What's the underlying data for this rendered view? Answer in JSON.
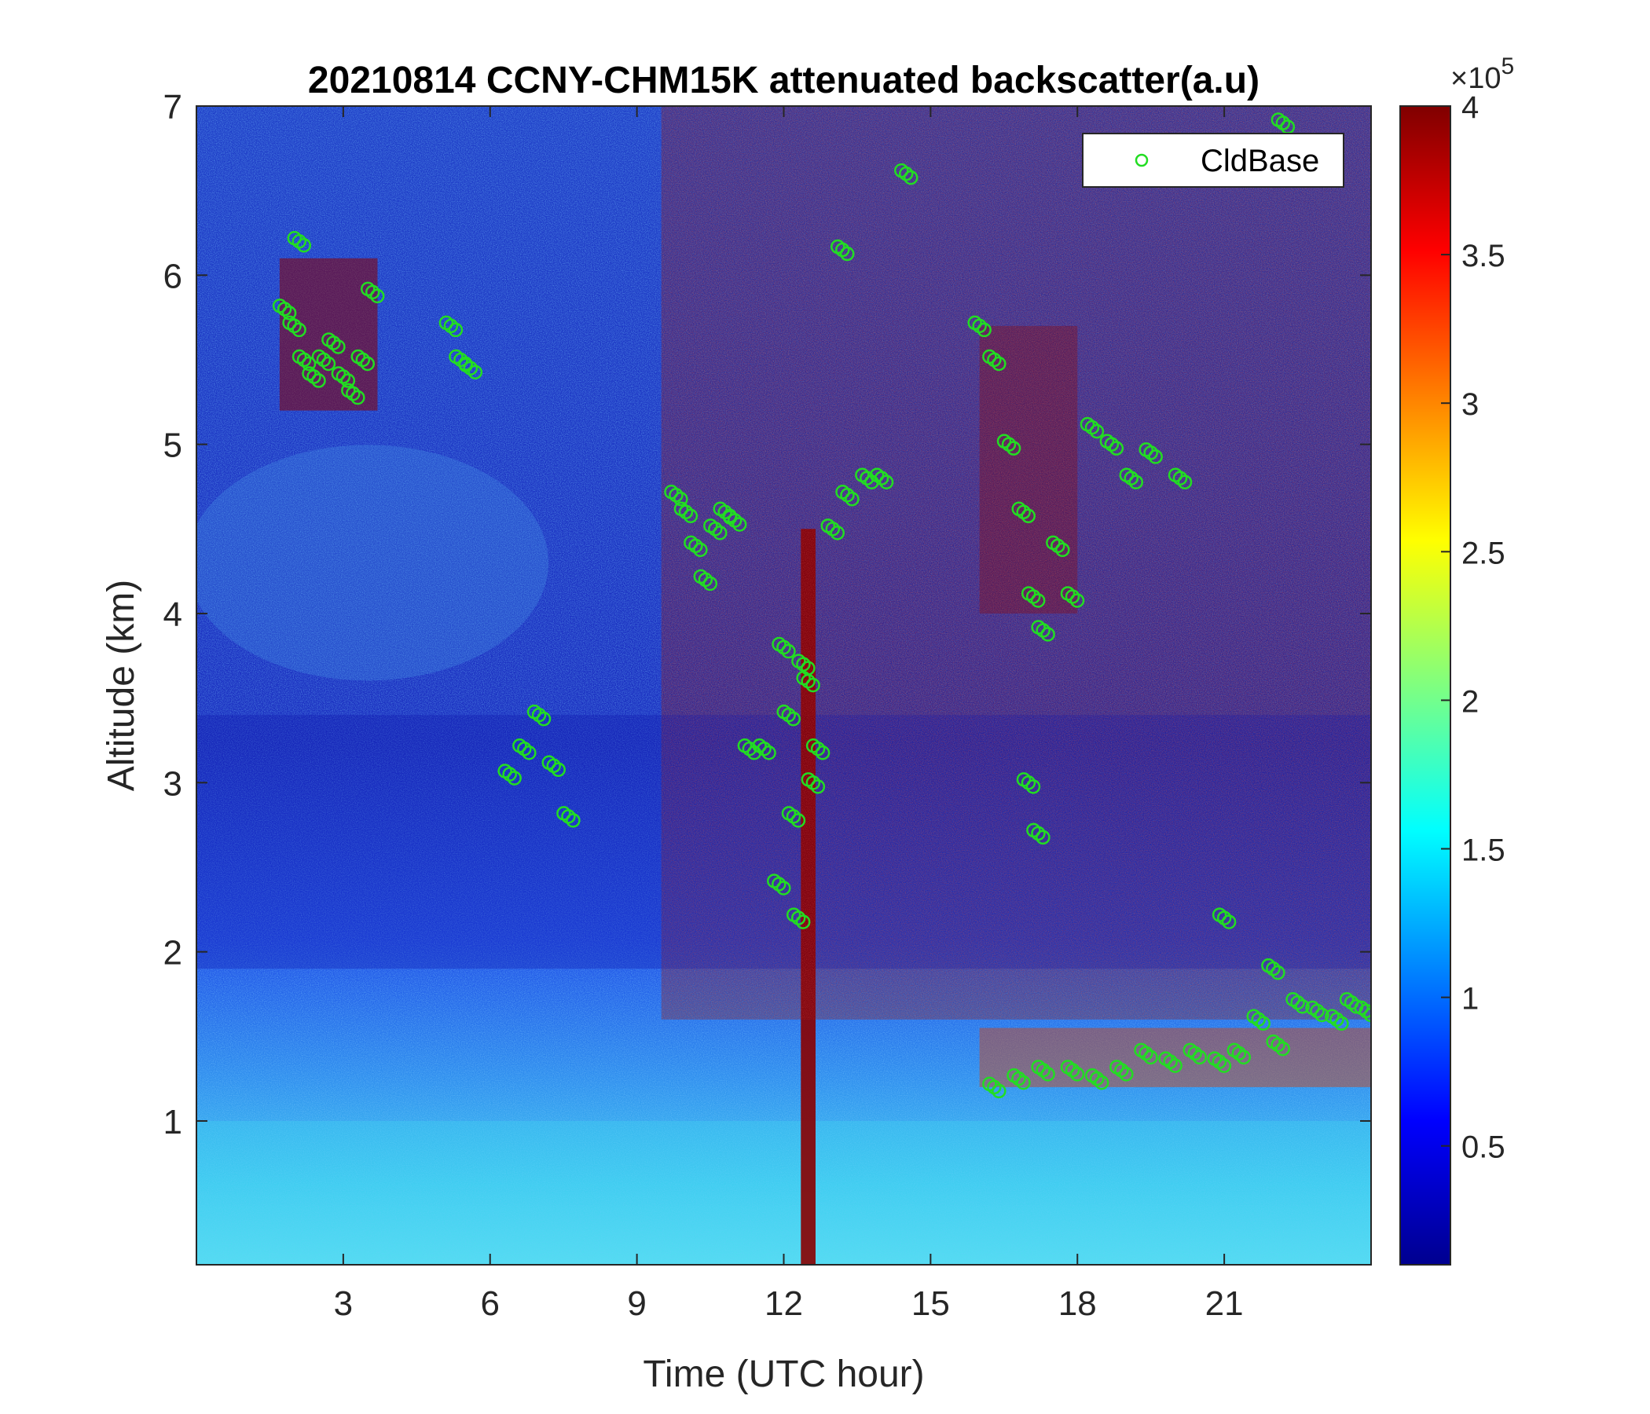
{
  "chart_data": {
    "type": "heatmap",
    "title": "20210814 CCNY-CHM15K attenuated backscatter(a.u)",
    "xlabel": "Time (UTC hour)",
    "ylabel": "Altitude (km)",
    "xlim": [
      0,
      24
    ],
    "ylim": [
      0.15,
      7
    ],
    "xticks": [
      3,
      6,
      9,
      12,
      15,
      18,
      21
    ],
    "yticks": [
      1,
      2,
      3,
      4,
      5,
      6,
      7
    ],
    "xtick_labels": [
      "3",
      "6",
      "9",
      "12",
      "15",
      "18",
      "21"
    ],
    "ytick_labels": [
      "1",
      "2",
      "3",
      "4",
      "5",
      "6",
      "7"
    ],
    "colorbar": {
      "colormap": "jet",
      "range": [
        0.1,
        4
      ],
      "ticks": [
        0.5,
        1,
        1.5,
        2,
        2.5,
        3,
        3.5,
        4
      ],
      "tick_labels": [
        "0.5",
        "1",
        "1.5",
        "2",
        "2.5",
        "3",
        "3.5",
        "4"
      ],
      "exponent_prefix": "×10",
      "exponent": "5"
    },
    "legend": {
      "position": "top-right",
      "entries": [
        "CldBase"
      ]
    },
    "series": [
      {
        "name": "CldBase",
        "marker": "circle",
        "color": "#22dd22",
        "x": [
          1.8,
          2.0,
          2.2,
          2.4,
          2.6,
          2.8,
          3.0,
          3.2,
          3.4,
          3.6,
          2.1,
          5.2,
          5.4,
          5.6,
          6.4,
          6.7,
          7.0,
          7.3,
          7.6,
          9.8,
          10.0,
          10.2,
          10.4,
          10.6,
          10.8,
          11.0,
          11.3,
          11.6,
          11.9,
          12.0,
          12.1,
          12.2,
          12.3,
          12.4,
          12.5,
          12.6,
          12.7,
          13.0,
          13.3,
          13.7,
          14.0,
          14.5,
          13.2,
          16.0,
          16.3,
          16.6,
          16.9,
          17.1,
          17.3,
          17.6,
          17.9,
          17.0,
          17.2,
          18.3,
          18.7,
          19.1,
          19.5,
          20.1,
          16.3,
          16.8,
          17.3,
          17.9,
          18.4,
          18.9,
          19.4,
          19.9,
          20.4,
          20.9,
          21.3,
          21.7,
          22.1,
          22.5,
          22.9,
          23.3,
          23.6,
          23.9,
          21.0,
          22.0,
          22.2
        ],
        "y": [
          5.8,
          5.7,
          5.5,
          5.4,
          5.5,
          5.6,
          5.4,
          5.3,
          5.5,
          5.9,
          6.2,
          5.7,
          5.5,
          5.45,
          3.05,
          3.2,
          3.4,
          3.1,
          2.8,
          4.7,
          4.6,
          4.4,
          4.2,
          4.5,
          4.6,
          4.55,
          3.2,
          3.2,
          2.4,
          3.8,
          3.4,
          2.8,
          2.2,
          3.7,
          3.6,
          3.0,
          3.2,
          4.5,
          4.7,
          4.8,
          4.8,
          6.6,
          6.15,
          5.7,
          5.5,
          5.0,
          4.6,
          4.1,
          3.9,
          4.4,
          4.1,
          3.0,
          2.7,
          5.1,
          5.0,
          4.8,
          4.95,
          4.8,
          1.2,
          1.25,
          1.3,
          1.3,
          1.25,
          1.3,
          1.4,
          1.35,
          1.4,
          1.35,
          1.4,
          1.6,
          1.45,
          1.7,
          1.65,
          1.6,
          1.7,
          1.65,
          2.2,
          1.9,
          6.9
        ]
      }
    ]
  }
}
